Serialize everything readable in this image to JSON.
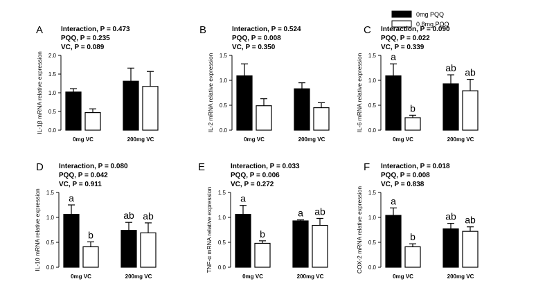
{
  "legend": [
    {
      "label": "0mg PQQ",
      "color": "#000000"
    },
    {
      "label": "0.8mg PQQ",
      "color": "#ffffff"
    }
  ],
  "chart_data": [
    {
      "type": "bar",
      "panel": "A",
      "ylabel": "IL-1β mRNA relative expression",
      "stats": [
        "Interaction, P = 0.473",
        "PQQ, P = 0.235",
        "VC, P = 0.089"
      ],
      "categories": [
        "0mg VC",
        "200mg VC"
      ],
      "series": [
        {
          "name": "0mg PQQ",
          "values": [
            1.02,
            1.31
          ],
          "errors": [
            0.09,
            0.35
          ],
          "labels": [
            "",
            ""
          ]
        },
        {
          "name": "0.8mg PQQ",
          "values": [
            0.47,
            1.17
          ],
          "errors": [
            0.1,
            0.4
          ],
          "labels": [
            "",
            ""
          ]
        }
      ],
      "ylim": [
        0,
        2.0
      ],
      "yticks": [
        "0.0",
        "0.5",
        "1.0",
        "1.5",
        "2.0"
      ]
    },
    {
      "type": "bar",
      "panel": "B",
      "ylabel": "IL-2 mRNA relative expression",
      "stats": [
        "Interaction, P = 0.524",
        "PQQ, P = 0.008",
        "VC, P = 0.350"
      ],
      "categories": [
        "0mg VC",
        "200mg VC"
      ],
      "series": [
        {
          "name": "0mg PQQ",
          "values": [
            1.09,
            0.83
          ],
          "errors": [
            0.24,
            0.12
          ],
          "labels": [
            "",
            ""
          ]
        },
        {
          "name": "0.8mg PQQ",
          "values": [
            0.49,
            0.45
          ],
          "errors": [
            0.14,
            0.1
          ],
          "labels": [
            "",
            ""
          ]
        }
      ],
      "ylim": [
        0,
        1.5
      ],
      "yticks": [
        "0.0",
        "0.5",
        "1.0",
        "1.5"
      ]
    },
    {
      "type": "bar",
      "panel": "C",
      "ylabel": "IL-6 mRNA relative expression",
      "stats": [
        "Interaction, P = 0.090",
        "PQQ, P = 0.022",
        "VC, P = 0.339"
      ],
      "categories": [
        "0mg VC",
        "200mg VC"
      ],
      "series": [
        {
          "name": "0mg PQQ",
          "values": [
            1.09,
            0.93
          ],
          "errors": [
            0.24,
            0.18
          ],
          "labels": [
            "a",
            "ab"
          ]
        },
        {
          "name": "0.8mg PQQ",
          "values": [
            0.25,
            0.79
          ],
          "errors": [
            0.05,
            0.23
          ],
          "labels": [
            "b",
            "ab"
          ]
        }
      ],
      "ylim": [
        0,
        1.5
      ],
      "yticks": [
        "0.0",
        "0.5",
        "1.0",
        "1.5"
      ]
    },
    {
      "type": "bar",
      "panel": "D",
      "ylabel": "IL-10 mRNA relative expression",
      "stats": [
        "Interaction, P = 0.080",
        "PQQ, P = 0.042",
        "VC, P = 0.911"
      ],
      "categories": [
        "0mg VC",
        "200mg VC"
      ],
      "series": [
        {
          "name": "0mg PQQ",
          "values": [
            1.06,
            0.74
          ],
          "errors": [
            0.19,
            0.16
          ],
          "labels": [
            "a",
            "ab"
          ]
        },
        {
          "name": "0.8mg PQQ",
          "values": [
            0.41,
            0.69
          ],
          "errors": [
            0.1,
            0.2
          ],
          "labels": [
            "b",
            "ab"
          ]
        }
      ],
      "ylim": [
        0,
        1.5
      ],
      "yticks": [
        "0.0",
        "0.5",
        "1.0",
        "1.5"
      ]
    },
    {
      "type": "bar",
      "panel": "E",
      "ylabel": "TNF-α mRNA relative expression",
      "stats": [
        "Interaction, P = 0.033",
        "PQQ, P = 0.006",
        "VC, P = 0.272"
      ],
      "categories": [
        "0mg VC",
        "200mg VC"
      ],
      "series": [
        {
          "name": "0mg PQQ",
          "values": [
            1.06,
            0.93
          ],
          "errors": [
            0.18,
            0.02
          ],
          "labels": [
            "a",
            "a"
          ]
        },
        {
          "name": "0.8mg PQQ",
          "values": [
            0.48,
            0.84
          ],
          "errors": [
            0.05,
            0.14
          ],
          "labels": [
            "b",
            "ab"
          ]
        }
      ],
      "ylim": [
        0,
        1.5
      ],
      "yticks": [
        "0.0",
        "0.5",
        "1.0",
        "1.5"
      ]
    },
    {
      "type": "bar",
      "panel": "F",
      "ylabel": "COX-2 mRNA relative expression",
      "stats": [
        "Interaction, P = 0.018",
        "PQQ, P = 0.008",
        "VC, P = 0.838"
      ],
      "categories": [
        "0mg VC",
        "200mg VC"
      ],
      "series": [
        {
          "name": "0mg PQQ",
          "values": [
            1.04,
            0.77
          ],
          "errors": [
            0.15,
            0.11
          ],
          "labels": [
            "a",
            "ab"
          ]
        },
        {
          "name": "0.8mg PQQ",
          "values": [
            0.41,
            0.72
          ],
          "errors": [
            0.06,
            0.09
          ],
          "labels": [
            "b",
            "ab"
          ]
        }
      ],
      "ylim": [
        0,
        1.5
      ],
      "yticks": [
        "0.0",
        "0.5",
        "1.0",
        "1.5"
      ]
    }
  ]
}
